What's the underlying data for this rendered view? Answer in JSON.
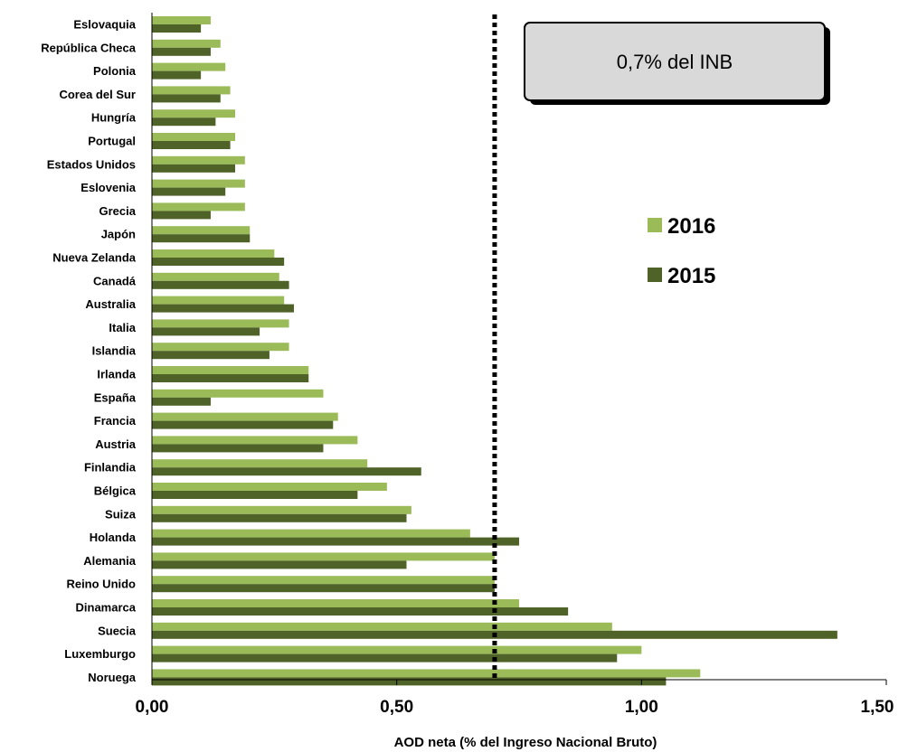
{
  "chart_data": {
    "type": "bar",
    "orientation": "horizontal",
    "categories": [
      "Eslovaquia",
      "República Checa",
      "Polonia",
      "Corea del Sur",
      "Hungría",
      "Portugal",
      "Estados Unidos",
      "Eslovenia",
      "Grecia",
      "Japón",
      "Nueva Zelanda",
      "Canadá",
      "Australia",
      "Italia",
      "Islandia",
      "Irlanda",
      "España",
      "Francia",
      "Austria",
      "Finlandia",
      "Bélgica",
      "Suiza",
      "Holanda",
      "Alemania",
      "Reino Unido",
      "Dinamarca",
      "Suecia",
      "Luxemburgo",
      "Noruega"
    ],
    "series": [
      {
        "name": "2016",
        "color": "#9BBB59",
        "values": [
          0.12,
          0.14,
          0.15,
          0.16,
          0.17,
          0.17,
          0.19,
          0.19,
          0.19,
          0.2,
          0.25,
          0.26,
          0.27,
          0.28,
          0.28,
          0.32,
          0.35,
          0.38,
          0.42,
          0.44,
          0.48,
          0.53,
          0.65,
          0.7,
          0.7,
          0.75,
          0.94,
          1.0,
          1.12
        ]
      },
      {
        "name": "2015",
        "color": "#4F6228",
        "values": [
          0.1,
          0.12,
          0.1,
          0.14,
          0.13,
          0.16,
          0.17,
          0.15,
          0.12,
          0.2,
          0.27,
          0.28,
          0.29,
          0.22,
          0.24,
          0.32,
          0.12,
          0.37,
          0.35,
          0.55,
          0.42,
          0.52,
          0.75,
          0.52,
          0.7,
          0.85,
          1.4,
          0.95,
          1.05
        ]
      }
    ],
    "xlim": [
      0,
      1.5
    ],
    "x_ticks": [
      "0,00",
      "0,50",
      "1,00",
      "1,50"
    ],
    "x_tick_values": [
      0,
      0.5,
      1.0,
      1.5
    ],
    "xlabel": "AOD neta (% del Ingreso Nacional Bruto)",
    "reference_line": {
      "value": 0.7,
      "label": "0,7% del INB",
      "style": "dotted"
    },
    "legend": {
      "placement": "right-middle",
      "entries": [
        "2016",
        "2015"
      ]
    },
    "grid": false
  }
}
